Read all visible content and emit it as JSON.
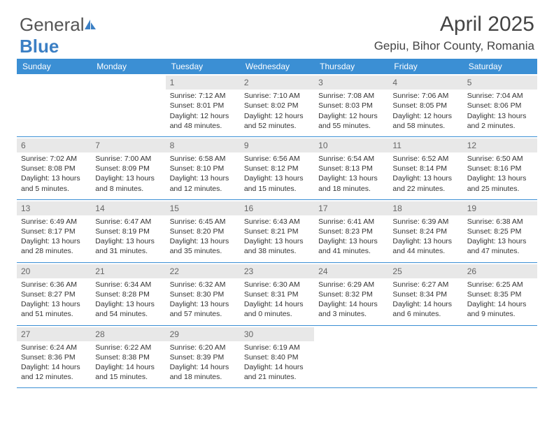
{
  "logo": {
    "text1": "General",
    "text2": "Blue"
  },
  "header": {
    "month_title": "April 2025",
    "location": "Gepiu, Bihor County, Romania"
  },
  "colors": {
    "header_bg": "#3b8fd4",
    "header_text": "#ffffff",
    "daynum_bg": "#e8e8e8",
    "week_border": "#3b8fd4",
    "logo_blue": "#3b7fc4"
  },
  "day_names": [
    "Sunday",
    "Monday",
    "Tuesday",
    "Wednesday",
    "Thursday",
    "Friday",
    "Saturday"
  ],
  "weeks": [
    [
      {
        "n": "",
        "sr": "",
        "ss": "",
        "dl": ""
      },
      {
        "n": "",
        "sr": "",
        "ss": "",
        "dl": ""
      },
      {
        "n": "1",
        "sr": "Sunrise: 7:12 AM",
        "ss": "Sunset: 8:01 PM",
        "dl": "Daylight: 12 hours and 48 minutes."
      },
      {
        "n": "2",
        "sr": "Sunrise: 7:10 AM",
        "ss": "Sunset: 8:02 PM",
        "dl": "Daylight: 12 hours and 52 minutes."
      },
      {
        "n": "3",
        "sr": "Sunrise: 7:08 AM",
        "ss": "Sunset: 8:03 PM",
        "dl": "Daylight: 12 hours and 55 minutes."
      },
      {
        "n": "4",
        "sr": "Sunrise: 7:06 AM",
        "ss": "Sunset: 8:05 PM",
        "dl": "Daylight: 12 hours and 58 minutes."
      },
      {
        "n": "5",
        "sr": "Sunrise: 7:04 AM",
        "ss": "Sunset: 8:06 PM",
        "dl": "Daylight: 13 hours and 2 minutes."
      }
    ],
    [
      {
        "n": "6",
        "sr": "Sunrise: 7:02 AM",
        "ss": "Sunset: 8:08 PM",
        "dl": "Daylight: 13 hours and 5 minutes."
      },
      {
        "n": "7",
        "sr": "Sunrise: 7:00 AM",
        "ss": "Sunset: 8:09 PM",
        "dl": "Daylight: 13 hours and 8 minutes."
      },
      {
        "n": "8",
        "sr": "Sunrise: 6:58 AM",
        "ss": "Sunset: 8:10 PM",
        "dl": "Daylight: 13 hours and 12 minutes."
      },
      {
        "n": "9",
        "sr": "Sunrise: 6:56 AM",
        "ss": "Sunset: 8:12 PM",
        "dl": "Daylight: 13 hours and 15 minutes."
      },
      {
        "n": "10",
        "sr": "Sunrise: 6:54 AM",
        "ss": "Sunset: 8:13 PM",
        "dl": "Daylight: 13 hours and 18 minutes."
      },
      {
        "n": "11",
        "sr": "Sunrise: 6:52 AM",
        "ss": "Sunset: 8:14 PM",
        "dl": "Daylight: 13 hours and 22 minutes."
      },
      {
        "n": "12",
        "sr": "Sunrise: 6:50 AM",
        "ss": "Sunset: 8:16 PM",
        "dl": "Daylight: 13 hours and 25 minutes."
      }
    ],
    [
      {
        "n": "13",
        "sr": "Sunrise: 6:49 AM",
        "ss": "Sunset: 8:17 PM",
        "dl": "Daylight: 13 hours and 28 minutes."
      },
      {
        "n": "14",
        "sr": "Sunrise: 6:47 AM",
        "ss": "Sunset: 8:19 PM",
        "dl": "Daylight: 13 hours and 31 minutes."
      },
      {
        "n": "15",
        "sr": "Sunrise: 6:45 AM",
        "ss": "Sunset: 8:20 PM",
        "dl": "Daylight: 13 hours and 35 minutes."
      },
      {
        "n": "16",
        "sr": "Sunrise: 6:43 AM",
        "ss": "Sunset: 8:21 PM",
        "dl": "Daylight: 13 hours and 38 minutes."
      },
      {
        "n": "17",
        "sr": "Sunrise: 6:41 AM",
        "ss": "Sunset: 8:23 PM",
        "dl": "Daylight: 13 hours and 41 minutes."
      },
      {
        "n": "18",
        "sr": "Sunrise: 6:39 AM",
        "ss": "Sunset: 8:24 PM",
        "dl": "Daylight: 13 hours and 44 minutes."
      },
      {
        "n": "19",
        "sr": "Sunrise: 6:38 AM",
        "ss": "Sunset: 8:25 PM",
        "dl": "Daylight: 13 hours and 47 minutes."
      }
    ],
    [
      {
        "n": "20",
        "sr": "Sunrise: 6:36 AM",
        "ss": "Sunset: 8:27 PM",
        "dl": "Daylight: 13 hours and 51 minutes."
      },
      {
        "n": "21",
        "sr": "Sunrise: 6:34 AM",
        "ss": "Sunset: 8:28 PM",
        "dl": "Daylight: 13 hours and 54 minutes."
      },
      {
        "n": "22",
        "sr": "Sunrise: 6:32 AM",
        "ss": "Sunset: 8:30 PM",
        "dl": "Daylight: 13 hours and 57 minutes."
      },
      {
        "n": "23",
        "sr": "Sunrise: 6:30 AM",
        "ss": "Sunset: 8:31 PM",
        "dl": "Daylight: 14 hours and 0 minutes."
      },
      {
        "n": "24",
        "sr": "Sunrise: 6:29 AM",
        "ss": "Sunset: 8:32 PM",
        "dl": "Daylight: 14 hours and 3 minutes."
      },
      {
        "n": "25",
        "sr": "Sunrise: 6:27 AM",
        "ss": "Sunset: 8:34 PM",
        "dl": "Daylight: 14 hours and 6 minutes."
      },
      {
        "n": "26",
        "sr": "Sunrise: 6:25 AM",
        "ss": "Sunset: 8:35 PM",
        "dl": "Daylight: 14 hours and 9 minutes."
      }
    ],
    [
      {
        "n": "27",
        "sr": "Sunrise: 6:24 AM",
        "ss": "Sunset: 8:36 PM",
        "dl": "Daylight: 14 hours and 12 minutes."
      },
      {
        "n": "28",
        "sr": "Sunrise: 6:22 AM",
        "ss": "Sunset: 8:38 PM",
        "dl": "Daylight: 14 hours and 15 minutes."
      },
      {
        "n": "29",
        "sr": "Sunrise: 6:20 AM",
        "ss": "Sunset: 8:39 PM",
        "dl": "Daylight: 14 hours and 18 minutes."
      },
      {
        "n": "30",
        "sr": "Sunrise: 6:19 AM",
        "ss": "Sunset: 8:40 PM",
        "dl": "Daylight: 14 hours and 21 minutes."
      },
      {
        "n": "",
        "sr": "",
        "ss": "",
        "dl": ""
      },
      {
        "n": "",
        "sr": "",
        "ss": "",
        "dl": ""
      },
      {
        "n": "",
        "sr": "",
        "ss": "",
        "dl": ""
      }
    ]
  ]
}
